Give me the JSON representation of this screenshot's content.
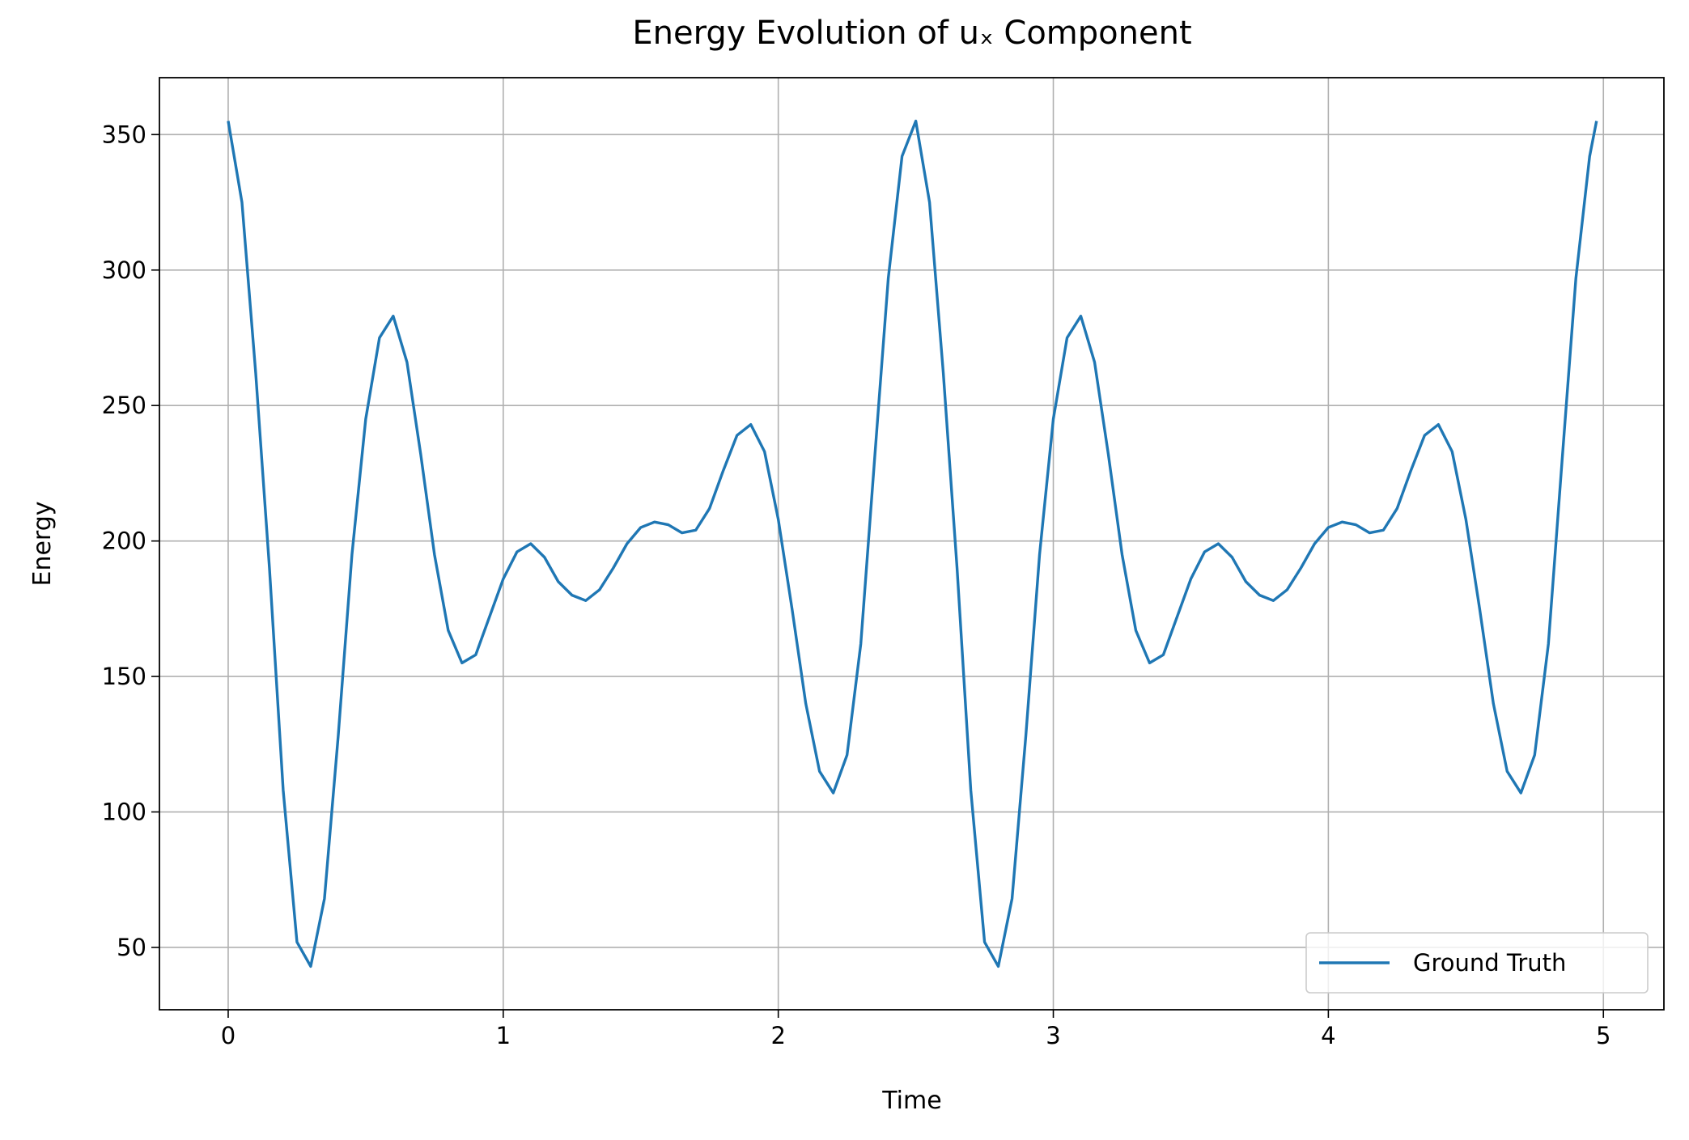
{
  "chart_data": {
    "type": "line",
    "title": "Energy Evolution of uₓ Component",
    "x_label": "Time",
    "y_label": "Energy",
    "x": [
      0,
      0.05,
      0.1,
      0.15,
      0.2,
      0.25,
      0.3,
      0.35,
      0.4,
      0.45,
      0.5,
      0.55,
      0.6,
      0.65,
      0.7,
      0.75,
      0.8,
      0.85,
      0.9,
      0.95,
      1.0,
      1.05,
      1.1,
      1.15,
      1.2,
      1.25,
      1.3,
      1.35,
      1.4,
      1.45,
      1.5,
      1.55,
      1.6,
      1.65,
      1.7,
      1.75,
      1.8,
      1.85,
      1.9,
      1.95,
      2.0,
      2.05,
      2.1,
      2.15,
      2.2,
      2.25,
      2.3,
      2.35,
      2.4,
      2.45,
      2.5,
      2.55,
      2.6,
      2.65,
      2.7,
      2.75,
      2.8,
      2.85,
      2.9,
      2.95,
      3.0,
      3.05,
      3.1,
      3.15,
      3.2,
      3.25,
      3.3,
      3.35,
      3.4,
      3.45,
      3.5,
      3.55,
      3.6,
      3.65,
      3.7,
      3.75,
      3.8,
      3.85,
      3.9,
      3.95,
      4.0,
      4.05,
      4.1,
      4.15,
      4.2,
      4.25,
      4.3,
      4.35,
      4.4,
      4.45,
      4.5,
      4.55,
      4.6,
      4.65,
      4.7,
      4.75,
      4.8,
      4.85,
      4.9,
      4.95,
      4.975
    ],
    "series": [
      {
        "name": "Ground Truth",
        "color": "#1f77b4",
        "values": [
          355,
          325,
          262,
          190,
          108,
          52,
          43,
          68,
          128,
          195,
          245,
          275,
          283,
          266,
          232,
          195,
          167,
          155,
          158,
          172,
          186,
          196,
          199,
          194,
          185,
          180,
          178,
          182,
          190,
          199,
          205,
          207,
          206,
          203,
          204,
          212,
          226,
          239,
          243,
          233,
          208,
          175,
          140,
          115,
          107,
          121,
          162,
          230,
          297,
          342,
          355,
          325,
          262,
          190,
          108,
          52,
          43,
          68,
          128,
          195,
          245,
          275,
          283,
          266,
          232,
          195,
          167,
          155,
          158,
          172,
          186,
          196,
          199,
          194,
          185,
          180,
          178,
          182,
          190,
          199,
          205,
          207,
          206,
          203,
          204,
          212,
          226,
          239,
          243,
          233,
          208,
          175,
          140,
          115,
          107,
          121,
          162,
          230,
          297,
          342,
          355
        ]
      }
    ],
    "xlim": [
      -0.25,
      5.22
    ],
    "ylim": [
      27,
      371
    ],
    "xticks": [
      0,
      1,
      2,
      3,
      4,
      5
    ],
    "yticks": [
      50,
      100,
      150,
      200,
      250,
      300,
      350
    ],
    "grid": true,
    "legend": "lower right"
  }
}
